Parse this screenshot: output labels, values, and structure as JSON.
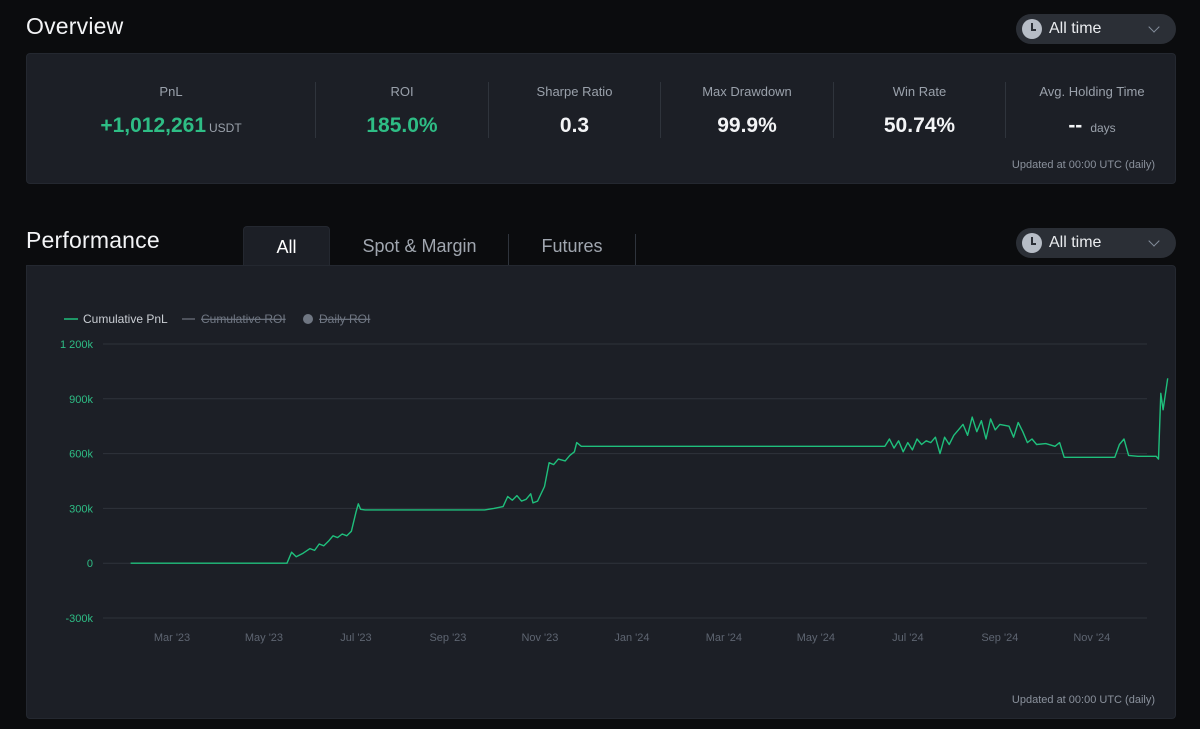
{
  "overview": {
    "title": "Overview",
    "time_filter": "All time",
    "stats": [
      {
        "label": "PnL",
        "value": "+1,012,261",
        "unit": "USDT"
      },
      {
        "label": "ROI",
        "value": "185.0%",
        "unit": ""
      },
      {
        "label": "Sharpe Ratio",
        "value": "0.3",
        "unit": ""
      },
      {
        "label": "Max Drawdown",
        "value": "99.9%",
        "unit": ""
      },
      {
        "label": "Win Rate",
        "value": "50.74%",
        "unit": ""
      },
      {
        "label": "Avg. Holding Time",
        "value": "--",
        "unit": "days"
      }
    ],
    "updated": "Updated at 00:00 UTC (daily)"
  },
  "performance": {
    "title": "Performance",
    "tabs": [
      "All",
      "Spot & Margin",
      "Futures"
    ],
    "active_tab": "All",
    "time_filter": "All time",
    "updated": "Updated at 00:00 UTC (daily)"
  },
  "colors": {
    "green": "#2ebd85",
    "line": "#1fbf7c",
    "muted": "#848e9c"
  },
  "chart_data": {
    "type": "line",
    "title": "",
    "xlabel": "",
    "ylabel": "",
    "legend": [
      {
        "name": "Cumulative PnL",
        "active": true
      },
      {
        "name": "Cumulative ROI",
        "active": false
      },
      {
        "name": "Daily ROI",
        "active": false
      }
    ],
    "ylim": [
      -300000,
      1200000
    ],
    "y_ticks": [
      {
        "value": 1200000,
        "label": "1 200k"
      },
      {
        "value": 900000,
        "label": "900k"
      },
      {
        "value": 600000,
        "label": "600k"
      },
      {
        "value": 300000,
        "label": "300k"
      },
      {
        "value": 0,
        "label": "0"
      },
      {
        "value": -300000,
        "label": "-300k"
      }
    ],
    "x_range": [
      0,
      22.7
    ],
    "x_ticks": [
      {
        "value": 1.5,
        "label": "Mar '23"
      },
      {
        "value": 3.5,
        "label": "May '23"
      },
      {
        "value": 5.5,
        "label": "Jul '23"
      },
      {
        "value": 7.5,
        "label": "Sep '23"
      },
      {
        "value": 9.5,
        "label": "Nov '23"
      },
      {
        "value": 11.5,
        "label": "Jan '24"
      },
      {
        "value": 13.5,
        "label": "Mar '24"
      },
      {
        "value": 15.5,
        "label": "May '24"
      },
      {
        "value": 17.5,
        "label": "Jul '24"
      },
      {
        "value": 19.5,
        "label": "Sep '24"
      },
      {
        "value": 21.5,
        "label": "Nov '24"
      }
    ],
    "series": [
      {
        "name": "Cumulative PnL",
        "points": [
          [
            0.6,
            0
          ],
          [
            4.0,
            0
          ],
          [
            4.1,
            60000
          ],
          [
            4.2,
            35000
          ],
          [
            4.35,
            55000
          ],
          [
            4.5,
            80000
          ],
          [
            4.6,
            70000
          ],
          [
            4.7,
            105000
          ],
          [
            4.8,
            95000
          ],
          [
            4.9,
            120000
          ],
          [
            5.0,
            150000
          ],
          [
            5.1,
            140000
          ],
          [
            5.2,
            160000
          ],
          [
            5.3,
            150000
          ],
          [
            5.4,
            175000
          ],
          [
            5.5,
            280000
          ],
          [
            5.55,
            325000
          ],
          [
            5.6,
            295000
          ],
          [
            5.7,
            292000
          ],
          [
            8.3,
            292000
          ],
          [
            8.5,
            300000
          ],
          [
            8.7,
            310000
          ],
          [
            8.8,
            365000
          ],
          [
            8.9,
            345000
          ],
          [
            9.0,
            370000
          ],
          [
            9.1,
            340000
          ],
          [
            9.2,
            350000
          ],
          [
            9.3,
            380000
          ],
          [
            9.35,
            330000
          ],
          [
            9.45,
            340000
          ],
          [
            9.6,
            420000
          ],
          [
            9.7,
            550000
          ],
          [
            9.8,
            540000
          ],
          [
            9.9,
            570000
          ],
          [
            10.05,
            560000
          ],
          [
            10.15,
            590000
          ],
          [
            10.25,
            610000
          ],
          [
            10.3,
            660000
          ],
          [
            10.4,
            640000
          ],
          [
            17.0,
            640000
          ],
          [
            17.1,
            680000
          ],
          [
            17.2,
            630000
          ],
          [
            17.3,
            670000
          ],
          [
            17.4,
            610000
          ],
          [
            17.5,
            660000
          ],
          [
            17.6,
            620000
          ],
          [
            17.7,
            680000
          ],
          [
            17.8,
            650000
          ],
          [
            17.9,
            670000
          ],
          [
            18.0,
            660000
          ],
          [
            18.1,
            690000
          ],
          [
            18.2,
            600000
          ],
          [
            18.3,
            690000
          ],
          [
            18.4,
            650000
          ],
          [
            18.5,
            700000
          ],
          [
            18.6,
            730000
          ],
          [
            18.7,
            760000
          ],
          [
            18.8,
            700000
          ],
          [
            18.9,
            800000
          ],
          [
            19.0,
            720000
          ],
          [
            19.1,
            780000
          ],
          [
            19.2,
            680000
          ],
          [
            19.3,
            790000
          ],
          [
            19.4,
            730000
          ],
          [
            19.5,
            760000
          ],
          [
            19.7,
            750000
          ],
          [
            19.8,
            690000
          ],
          [
            19.9,
            770000
          ],
          [
            20.0,
            720000
          ],
          [
            20.1,
            660000
          ],
          [
            20.2,
            680000
          ],
          [
            20.3,
            650000
          ],
          [
            20.5,
            655000
          ],
          [
            20.7,
            640000
          ],
          [
            20.8,
            660000
          ],
          [
            20.9,
            580000
          ],
          [
            22.0,
            580000
          ],
          [
            22.1,
            650000
          ],
          [
            22.2,
            680000
          ],
          [
            22.3,
            590000
          ],
          [
            22.5,
            585000
          ],
          [
            22.9,
            585000
          ],
          [
            22.95,
            570000
          ],
          [
            23.0,
            930000
          ],
          [
            23.05,
            840000
          ],
          [
            23.15,
            1012261
          ]
        ]
      }
    ]
  }
}
